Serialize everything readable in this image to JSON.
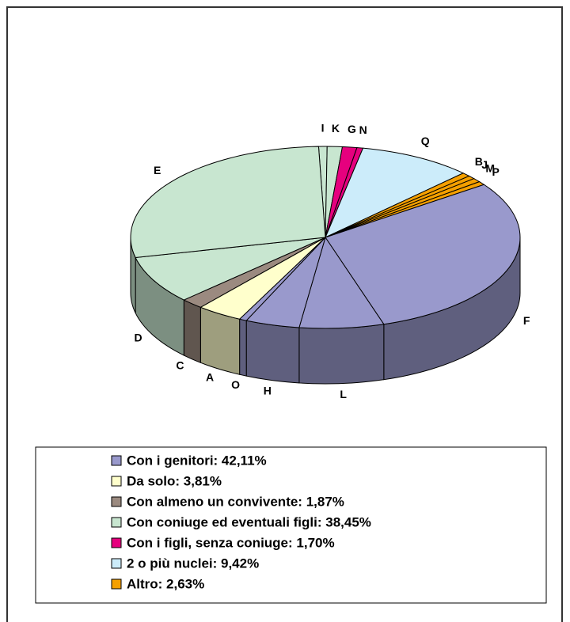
{
  "chart_data": {
    "type": "pie",
    "categories": [
      "I",
      "K",
      "G",
      "N",
      "Q",
      "B",
      "J",
      "M",
      "P",
      "F",
      "L",
      "H",
      "O",
      "A",
      "C",
      "D",
      "E"
    ],
    "values": [
      0.7,
      1.25,
      1.2,
      0.5,
      9.42,
      0.7,
      0.6,
      0.7,
      0.63,
      30,
      7,
      4.5,
      0.61,
      3.81,
      1.87,
      8.5,
      28
    ],
    "colors": [
      "#c8e6d0",
      "#c8e6d0",
      "#e6007e",
      "#e6007e",
      "#ccecfa",
      "#f5a000",
      "#f5a000",
      "#f5a000",
      "#f5a000",
      "#9999cc",
      "#9999cc",
      "#9999cc",
      "#9999cc",
      "#ffffcc",
      "#9b8a80",
      "#c8e6d0",
      "#c8e6d0"
    ],
    "legend": [
      {
        "label": "Con i genitori: 42,11%",
        "color": "#9999cc"
      },
      {
        "label": "Da solo: 3,81%",
        "color": "#ffffcc"
      },
      {
        "label": "Con almeno un convivente: 1,87%",
        "color": "#9b8a80"
      },
      {
        "label": "Con coniuge ed eventuali figli: 38,45%",
        "color": "#c8e6d0"
      },
      {
        "label": "Con i figli, senza coniuge: 1,70%",
        "color": "#e6007e"
      },
      {
        "label": "2 o più nuclei: 9,42%",
        "color": "#ccecfa"
      },
      {
        "label": "Altro: 2,63%",
        "color": "#f5a000"
      }
    ]
  }
}
